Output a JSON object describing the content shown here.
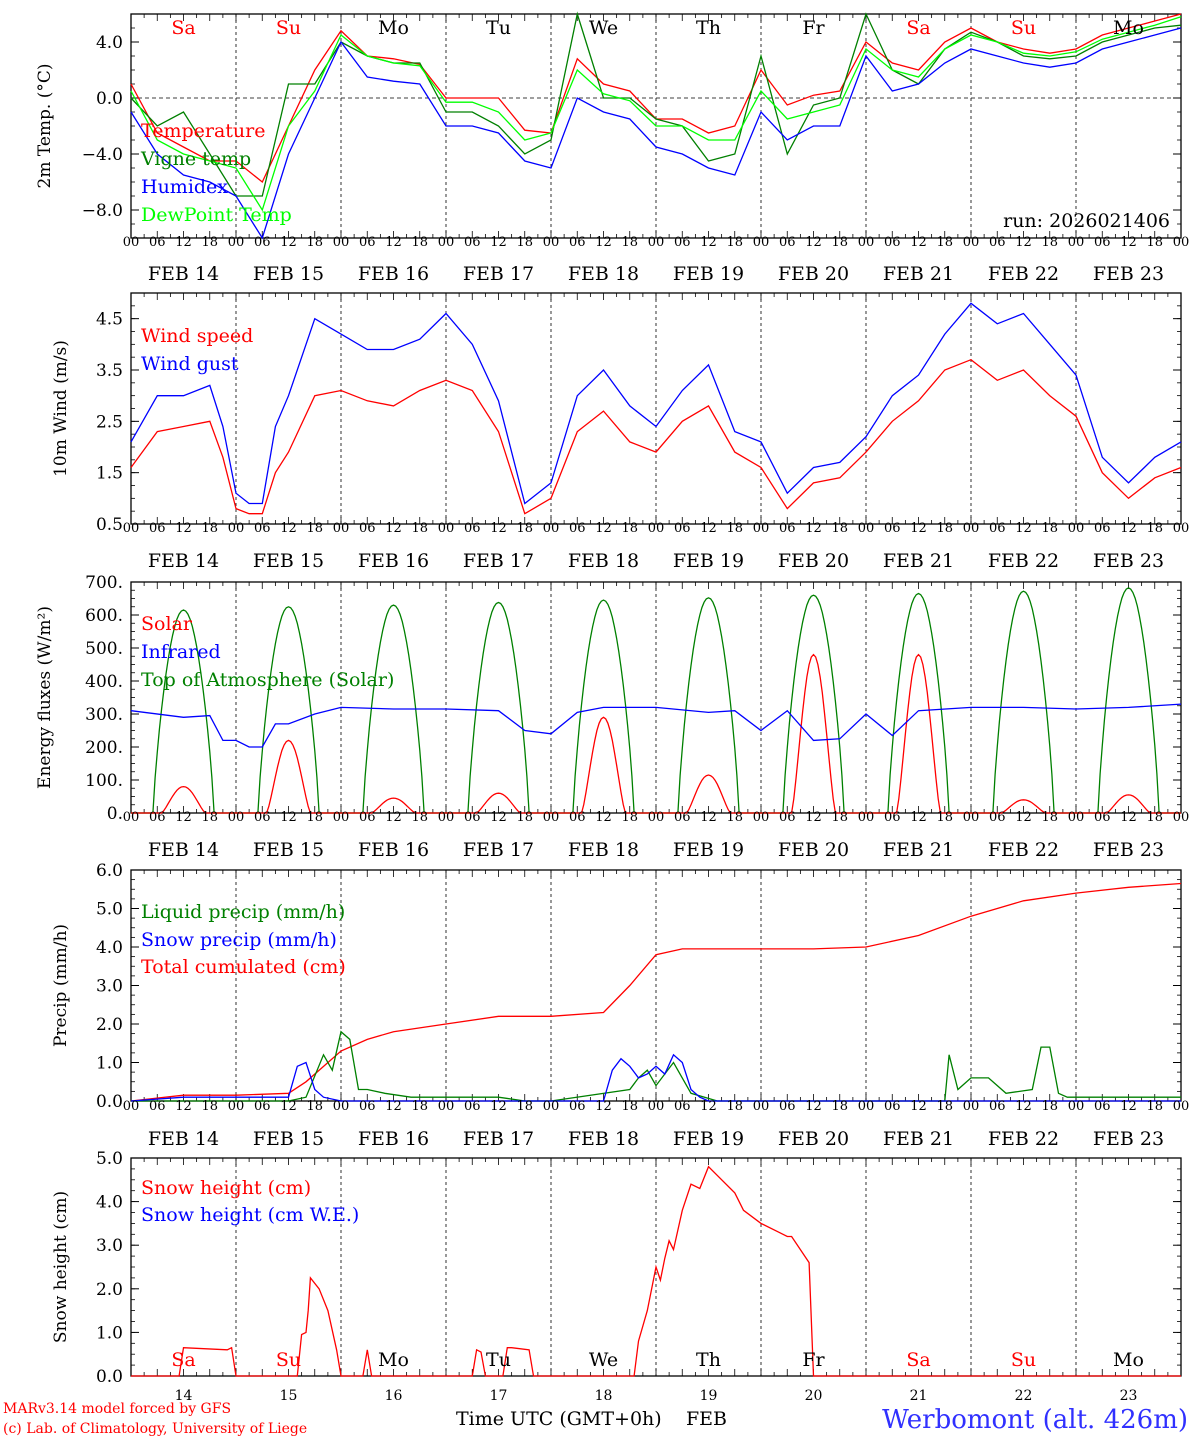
{
  "chart_data": [
    {
      "id": "temp",
      "type": "line",
      "ylabel": "2m Temp. (°C)",
      "ylim": [
        -10,
        6
      ],
      "yticks": [
        -8,
        -4,
        0,
        4
      ],
      "ytick_labels": [
        "−8.0",
        "−4.0",
        "0.0",
        "4.0"
      ],
      "zero_line": true,
      "legend": [
        "Temperature",
        "Vigne temp",
        "Humidex",
        "DewPoint Temp"
      ],
      "annotation": "run: 2026021406",
      "day_labels": [
        "Sa",
        "Su",
        "Mo",
        "Tu",
        "We",
        "Th",
        "Fr",
        "Sa",
        "Su",
        "Mo"
      ],
      "series": [
        {
          "name": "Temperature",
          "color": "#ff0000",
          "x": [
            0,
            6,
            12,
            18,
            24,
            30,
            36,
            42,
            48,
            54,
            60,
            66,
            72,
            78,
            84,
            90,
            96,
            102,
            108,
            114,
            120,
            126,
            132,
            138,
            144,
            150,
            156,
            162,
            168,
            174,
            180,
            186,
            192,
            198,
            204,
            210,
            216,
            222,
            228,
            234,
            240
          ],
          "values": [
            1,
            -2.5,
            -3.5,
            -4.5,
            -4.5,
            -6,
            -2,
            2,
            4.8,
            3,
            2.8,
            2.4,
            0,
            0,
            0,
            -2.3,
            -2.5,
            2.8,
            1,
            0.5,
            -1.5,
            -1.5,
            -2.5,
            -2,
            2,
            -0.5,
            0.2,
            0.5,
            4,
            2.5,
            2,
            4,
            5,
            4,
            3.5,
            3.2,
            3.5,
            4.5,
            5,
            5.5,
            6
          ]
        },
        {
          "name": "Vigne temp",
          "color": "#008000",
          "x": [
            0,
            6,
            12,
            18,
            24,
            30,
            36,
            42,
            48,
            54,
            60,
            66,
            72,
            78,
            84,
            90,
            96,
            102,
            108,
            114,
            120,
            126,
            132,
            138,
            144,
            150,
            156,
            162,
            168,
            174,
            180,
            186,
            192,
            198,
            204,
            210,
            216,
            222,
            228,
            234,
            240
          ],
          "values": [
            0,
            -2,
            -1,
            -4,
            -7,
            -7,
            1,
            1,
            4,
            3,
            2.5,
            2.5,
            -1,
            -1,
            -2,
            -4,
            -3,
            6,
            0,
            0,
            -1.5,
            -2,
            -4.5,
            -4,
            3,
            -4,
            -0.5,
            0,
            6,
            2,
            1,
            3.5,
            4.7,
            4,
            3,
            2.8,
            3,
            4,
            4.5,
            5,
            5.2
          ]
        },
        {
          "name": "Humidex",
          "color": "#0000ff",
          "x": [
            0,
            6,
            12,
            18,
            24,
            30,
            36,
            42,
            48,
            54,
            60,
            66,
            72,
            78,
            84,
            90,
            96,
            102,
            108,
            114,
            120,
            126,
            132,
            138,
            144,
            150,
            156,
            162,
            168,
            174,
            180,
            186,
            192,
            198,
            204,
            210,
            216,
            222,
            228,
            234,
            240
          ],
          "values": [
            -1,
            -4,
            -5.5,
            -6,
            -7,
            -10,
            -4,
            0,
            4,
            1.5,
            1.2,
            1,
            -2,
            -2,
            -2.5,
            -4.5,
            -5,
            0,
            -1,
            -1.5,
            -3.5,
            -4,
            -5,
            -5.5,
            -1,
            -3,
            -2,
            -2,
            3,
            0.5,
            1,
            2.5,
            3.5,
            3,
            2.5,
            2.2,
            2.5,
            3.5,
            4,
            4.5,
            5
          ]
        },
        {
          "name": "DewPoint Temp",
          "color": "#00ff00",
          "x": [
            0,
            6,
            12,
            18,
            24,
            30,
            36,
            42,
            48,
            54,
            60,
            66,
            72,
            78,
            84,
            90,
            96,
            102,
            108,
            114,
            120,
            126,
            132,
            138,
            144,
            150,
            156,
            162,
            168,
            174,
            180,
            186,
            192,
            198,
            204,
            210,
            216,
            222,
            228,
            234,
            240
          ],
          "values": [
            0.5,
            -3,
            -4,
            -4.5,
            -5,
            -8,
            -2,
            0.5,
            4.5,
            3,
            2.5,
            2.3,
            -0.3,
            -0.3,
            -1,
            -3,
            -2.5,
            2,
            0.3,
            -0.2,
            -2,
            -2,
            -3,
            -3,
            0.5,
            -1.5,
            -1,
            -0.5,
            3.5,
            2,
            1.5,
            3.5,
            4.5,
            4,
            3.2,
            3,
            3.3,
            4.2,
            4.7,
            5.2,
            5.8
          ]
        }
      ]
    },
    {
      "id": "wind",
      "type": "line",
      "ylabel": "10m Wind (m/s)",
      "ylim": [
        0.5,
        5.0
      ],
      "yticks": [
        0.5,
        1.5,
        2.5,
        3.5,
        4.5
      ],
      "ytick_labels": [
        "0.5",
        "1.5",
        "2.5",
        "3.5",
        "4.5"
      ],
      "legend": [
        "Wind speed",
        "Wind gust"
      ],
      "series": [
        {
          "name": "Wind speed",
          "color": "#ff0000",
          "x": [
            0,
            6,
            12,
            18,
            21,
            24,
            27,
            30,
            33,
            36,
            42,
            48,
            54,
            60,
            66,
            72,
            78,
            84,
            90,
            96,
            102,
            108,
            114,
            120,
            126,
            132,
            138,
            144,
            150,
            156,
            162,
            168,
            174,
            180,
            186,
            192,
            198,
            204,
            210,
            216,
            222,
            228,
            234,
            240
          ],
          "values": [
            1.6,
            2.3,
            2.4,
            2.5,
            1.8,
            0.8,
            0.7,
            0.7,
            1.5,
            1.9,
            3.0,
            3.1,
            2.9,
            2.8,
            3.1,
            3.3,
            3.1,
            2.3,
            0.7,
            1.0,
            2.3,
            2.7,
            2.1,
            1.9,
            2.5,
            2.8,
            1.9,
            1.6,
            0.8,
            1.3,
            1.4,
            1.9,
            2.5,
            2.9,
            3.5,
            3.7,
            3.3,
            3.5,
            3.0,
            2.6,
            1.5,
            1.0,
            1.4,
            1.6
          ]
        },
        {
          "name": "Wind gust",
          "color": "#0000ff",
          "x": [
            0,
            6,
            12,
            18,
            21,
            24,
            27,
            30,
            33,
            36,
            42,
            48,
            54,
            60,
            66,
            72,
            78,
            84,
            90,
            96,
            102,
            108,
            114,
            120,
            126,
            132,
            138,
            144,
            150,
            156,
            162,
            168,
            174,
            180,
            186,
            192,
            198,
            204,
            210,
            216,
            222,
            228,
            234,
            240
          ],
          "values": [
            2.1,
            3.0,
            3.0,
            3.2,
            2.4,
            1.1,
            0.9,
            0.9,
            2.4,
            3.0,
            4.5,
            4.2,
            3.9,
            3.9,
            4.1,
            4.6,
            4.0,
            2.9,
            0.9,
            1.3,
            3.0,
            3.5,
            2.8,
            2.4,
            3.1,
            3.6,
            2.3,
            2.1,
            1.1,
            1.6,
            1.7,
            2.2,
            3.0,
            3.4,
            4.2,
            4.8,
            4.4,
            4.6,
            4.0,
            3.4,
            1.8,
            1.3,
            1.8,
            2.1
          ]
        }
      ]
    },
    {
      "id": "flux",
      "type": "line",
      "ylabel": "Energy fluxes (W/m²)",
      "ylim": [
        0,
        700
      ],
      "yticks": [
        0,
        100,
        200,
        300,
        400,
        500,
        600,
        700
      ],
      "ytick_labels": [
        "0.",
        "100.",
        "200.",
        "300.",
        "400.",
        "500.",
        "600.",
        "700."
      ],
      "legend": [
        "Solar",
        "Infrared",
        "Top of Atmosphere (Solar)"
      ],
      "toa_peaks": [
        615,
        625,
        630,
        638,
        645,
        652,
        660,
        665,
        672,
        682
      ],
      "solar_peaks": [
        80,
        220,
        45,
        60,
        290,
        115,
        480,
        480,
        40,
        55
      ],
      "series": [
        {
          "name": "Infrared",
          "color": "#0000ff",
          "x": [
            0,
            12,
            18,
            21,
            24,
            27,
            30,
            33,
            36,
            42,
            48,
            60,
            72,
            84,
            90,
            96,
            102,
            108,
            120,
            132,
            138,
            144,
            150,
            156,
            162,
            168,
            174,
            180,
            192,
            204,
            216,
            228,
            240
          ],
          "values": [
            310,
            290,
            295,
            220,
            220,
            200,
            200,
            270,
            270,
            300,
            320,
            315,
            315,
            310,
            250,
            240,
            305,
            320,
            320,
            305,
            310,
            250,
            310,
            220,
            225,
            300,
            235,
            310,
            320,
            320,
            315,
            320,
            330
          ]
        }
      ]
    },
    {
      "id": "precip",
      "type": "line",
      "ylabel": "Precip (mm/h)",
      "ylim": [
        0,
        6
      ],
      "yticks": [
        0,
        1,
        2,
        3,
        4,
        5,
        6
      ],
      "ytick_labels": [
        "0.0",
        "1.0",
        "2.0",
        "3.0",
        "4.0",
        "5.0",
        "6.0"
      ],
      "legend": [
        "Liquid precip (mm/h)",
        "Snow precip (mm/h)",
        "Total cumulated (cm)"
      ],
      "series": [
        {
          "name": "Total cumulated (cm)",
          "color": "#ff0000",
          "x": [
            0,
            12,
            24,
            36,
            40,
            48,
            54,
            60,
            72,
            84,
            96,
            108,
            114,
            120,
            126,
            132,
            144,
            156,
            168,
            180,
            192,
            204,
            216,
            228,
            240
          ],
          "values": [
            0,
            0.15,
            0.15,
            0.2,
            0.5,
            1.3,
            1.6,
            1.8,
            2.0,
            2.2,
            2.2,
            2.3,
            3.0,
            3.8,
            3.95,
            3.95,
            3.95,
            3.95,
            4.0,
            4.3,
            4.8,
            5.2,
            5.4,
            5.55,
            5.65
          ]
        },
        {
          "name": "Liquid precip (mm/h)",
          "color": "#008000",
          "x": [
            0,
            24,
            36,
            40,
            44,
            46,
            48,
            50,
            52,
            54,
            58,
            64,
            72,
            84,
            90,
            96,
            114,
            116,
            118,
            120,
            124,
            128,
            134,
            144,
            156,
            186,
            187,
            189,
            192,
            196,
            200,
            206,
            208,
            210,
            212,
            214,
            218,
            240
          ],
          "values": [
            0,
            0,
            0,
            0.1,
            1.2,
            0.8,
            1.8,
            1.6,
            0.3,
            0.3,
            0.2,
            0.1,
            0.1,
            0.1,
            0,
            0,
            0.3,
            0.6,
            0.8,
            0.4,
            1.0,
            0.2,
            0,
            0,
            0,
            0,
            1.2,
            0.3,
            0.6,
            0.6,
            0.2,
            0.3,
            1.4,
            1.4,
            0.2,
            0.1,
            0.1,
            0.1
          ]
        },
        {
          "name": "Snow precip (mm/h)",
          "color": "#0000ff",
          "x": [
            0,
            12,
            24,
            36,
            38,
            40,
            42,
            44,
            48,
            60,
            72,
            84,
            96,
            108,
            110,
            112,
            114,
            116,
            118,
            120,
            122,
            124,
            126,
            128,
            130,
            132,
            144,
            240
          ],
          "values": [
            0,
            0.1,
            0.1,
            0.1,
            0.9,
            1.0,
            0.3,
            0.1,
            0,
            0,
            0,
            0,
            0,
            0,
            0.8,
            1.1,
            0.9,
            0.6,
            0.7,
            0.9,
            0.7,
            1.2,
            1.0,
            0.3,
            0.1,
            0,
            0,
            0
          ]
        }
      ]
    },
    {
      "id": "snow",
      "type": "line",
      "ylabel": "Snow height (cm)",
      "ylim": [
        0,
        5
      ],
      "yticks": [
        0,
        1,
        2,
        3,
        4,
        5
      ],
      "ytick_labels": [
        "0.0",
        "1.0",
        "2.0",
        "3.0",
        "4.0",
        "5.0"
      ],
      "legend": [
        "Snow height (cm)",
        "Snow height (cm W.E.)"
      ],
      "day_labels": [
        "Sa",
        "Su",
        "Mo",
        "Tu",
        "We",
        "Th",
        "Fr",
        "Sa",
        "Su",
        "Mo"
      ],
      "day_numbers": [
        "14",
        "15",
        "16",
        "17",
        "18",
        "19",
        "20",
        "21",
        "22",
        "23"
      ],
      "series": [
        {
          "name": "Snow height (cm)",
          "color": "#ff0000",
          "x": [
            0,
            11,
            12,
            22,
            23,
            24,
            38,
            39,
            40,
            40.5,
            41,
            43,
            45,
            47,
            48,
            53,
            54,
            55,
            78,
            79,
            80,
            81,
            85,
            86,
            87,
            91,
            92,
            115,
            116,
            118,
            120,
            121,
            122,
            123,
            124,
            126,
            128,
            130,
            132,
            134,
            138,
            140,
            144,
            148,
            150,
            151,
            155,
            156,
            240
          ],
          "values": [
            0,
            0,
            0.65,
            0.6,
            0.65,
            0,
            0,
            0.95,
            1.0,
            1.5,
            2.25,
            2.0,
            1.5,
            0.6,
            0,
            0,
            0.6,
            0,
            0,
            0.6,
            0.55,
            0,
            0,
            0.65,
            0.65,
            0.6,
            0,
            0,
            0.8,
            1.5,
            2.5,
            2.2,
            2.7,
            3.1,
            2.9,
            3.8,
            4.4,
            4.3,
            4.8,
            4.6,
            4.2,
            3.8,
            3.5,
            3.3,
            3.2,
            3.2,
            2.6,
            0,
            0
          ]
        }
      ]
    }
  ],
  "xaxis": {
    "hour_ticks": [
      "00",
      "06",
      "12",
      "18"
    ],
    "dates": [
      "FEB 14",
      "FEB 15",
      "FEB 16",
      "FEB 17",
      "FEB 18",
      "FEB 19",
      "FEB 20",
      "FEB 21",
      "FEB 22",
      "FEB 23"
    ]
  },
  "weekend_color": "#ff0000",
  "weekday_color": "#000000",
  "weekend_days": [
    "Sa",
    "Su"
  ],
  "footer": {
    "credit1": "MARv3.14 model forced by GFS",
    "credit2": "(c) Lab. of Climatology, University of Liege",
    "axis_label": "Time UTC (GMT+0h)",
    "month": "FEB",
    "station": "Werbomont (alt. 426m)"
  },
  "colors": {
    "red": "#ff0000",
    "green": "#008000",
    "blue": "#0000ff",
    "lime": "#00ff00"
  }
}
